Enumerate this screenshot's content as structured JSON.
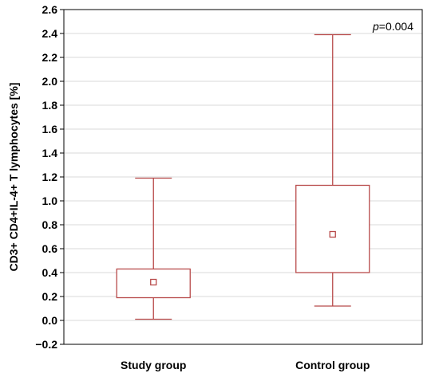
{
  "chart_data": {
    "type": "box",
    "title": "",
    "xlabel": "",
    "ylabel": "CD3+ CD4+IL-4+ T lymphocytes [%]",
    "ylim": [
      -0.2,
      2.6
    ],
    "yticks": [
      -0.2,
      0.0,
      0.2,
      0.4,
      0.6,
      0.8,
      1.0,
      1.2,
      1.4,
      1.6,
      1.8,
      2.0,
      2.2,
      2.4,
      2.6
    ],
    "ytick_labels": [
      "−0.2",
      "0.0",
      "0.2",
      "0.4",
      "0.6",
      "0.8",
      "1.0",
      "1.2",
      "1.4",
      "1.6",
      "1.8",
      "2.0",
      "2.2",
      "2.4",
      "2.6"
    ],
    "grid": "horizontal",
    "categories": [
      "Study group",
      "Control group"
    ],
    "boxes": [
      {
        "category": "Study group",
        "whisker_low": 0.01,
        "q1": 0.19,
        "center": 0.32,
        "q3": 0.43,
        "whisker_high": 1.19
      },
      {
        "category": "Control group",
        "whisker_low": 0.12,
        "q1": 0.4,
        "center": 0.72,
        "q3": 1.13,
        "whisker_high": 2.39
      }
    ],
    "box_color": "#b84a4a",
    "annotation": {
      "italic_part": "p",
      "rest": "=0.004"
    }
  }
}
